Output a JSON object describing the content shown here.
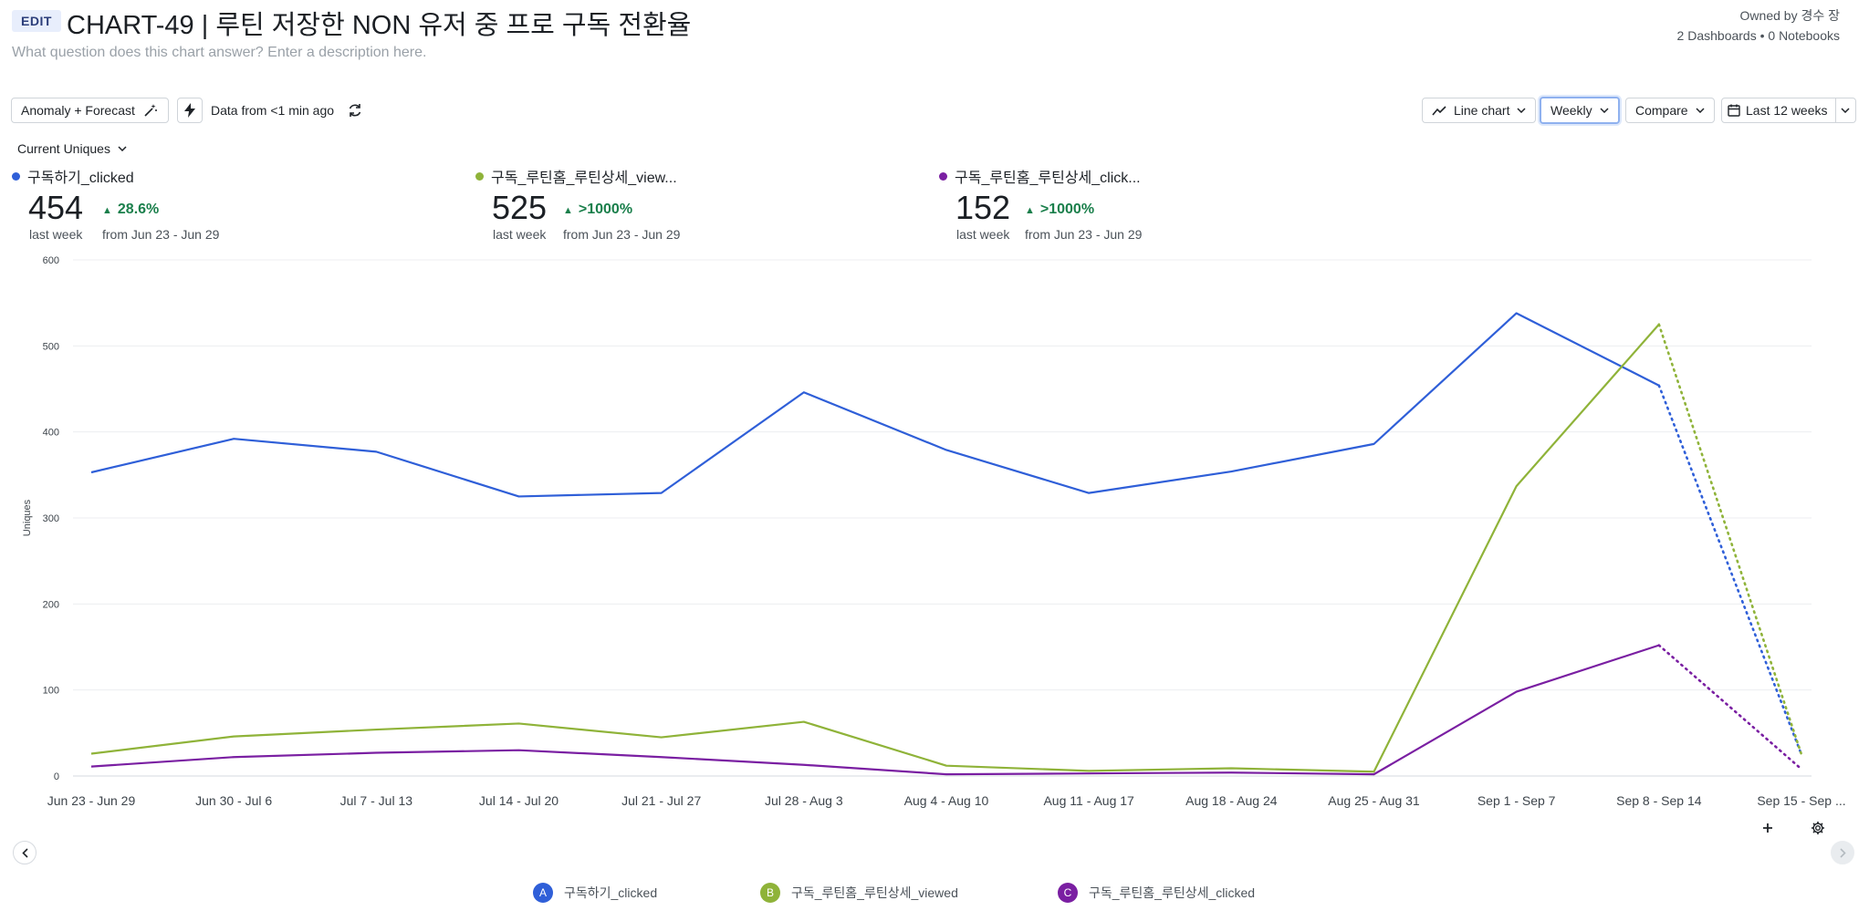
{
  "header": {
    "edit_label": "EDIT",
    "title": "CHART-49 | 루틴 저장한 NON 유저 중 프로 구독 전환율",
    "description_placeholder": "What question does this chart answer? Enter a description here.",
    "owner": "Owned by 경수 장",
    "counts": "2 Dashboards • 0 Notebooks"
  },
  "toolbar": {
    "anomaly_label": "Anomaly + Forecast",
    "data_freshness": "Data from <1 min ago",
    "chart_type_label": "Line chart",
    "interval_label": "Weekly",
    "compare_label": "Compare",
    "range_label": "Last 12 weeks"
  },
  "metric_selector": "Current Uniques",
  "summaries": [
    {
      "name": "구독하기_clicked",
      "value": "454",
      "period": "last week",
      "delta": "28.6%",
      "from": "from Jun 23 - Jun 29",
      "color": "#2f5fd8"
    },
    {
      "name": "구독_루틴홈_루틴상세_view...",
      "value": "525",
      "period": "last week",
      "delta": ">1000%",
      "from": "from Jun 23 - Jun 29",
      "color": "#8fb339"
    },
    {
      "name": "구독_루틴홈_루틴상세_click...",
      "value": "152",
      "period": "last week",
      "delta": ">1000%",
      "from": "from Jun 23 - Jun 29",
      "color": "#7a1fa2"
    }
  ],
  "legend": [
    {
      "letter": "A",
      "name": "구독하기_clicked",
      "color": "#2f5fd8"
    },
    {
      "letter": "B",
      "name": "구독_루틴홈_루틴상세_viewed",
      "color": "#8fb339"
    },
    {
      "letter": "C",
      "name": "구독_루틴홈_루틴상세_clicked",
      "color": "#7a1fa2"
    }
  ],
  "chart_data": {
    "type": "line",
    "title": "",
    "xlabel": "",
    "ylabel": "Uniques",
    "ylim": [
      0,
      600
    ],
    "yticks": [
      0,
      100,
      200,
      300,
      400,
      500,
      600
    ],
    "categories": [
      "Jun 23 - Jun 29",
      "Jun 30 - Jul 6",
      "Jul 7 - Jul 13",
      "Jul 14 - Jul 20",
      "Jul 21 - Jul 27",
      "Jul 28 - Aug 3",
      "Aug 4 - Aug 10",
      "Aug 11 - Aug 17",
      "Aug 18 - Aug 24",
      "Aug 25 - Aug 31",
      "Sep 1 - Sep 7",
      "Sep 8 - Sep 14",
      "Sep 15 - Sep ..."
    ],
    "grid": true,
    "incomplete_last_period": true,
    "series": [
      {
        "name": "구독하기_clicked",
        "color": "#2f5fd8",
        "values": [
          353,
          392,
          377,
          325,
          329,
          446,
          379,
          329,
          354,
          386,
          538,
          454,
          25
        ]
      },
      {
        "name": "구독_루틴홈_루틴상세_viewed",
        "color": "#8fb339",
        "values": [
          26,
          46,
          54,
          61,
          45,
          63,
          12,
          6,
          9,
          5,
          337,
          525,
          25
        ]
      },
      {
        "name": "구독_루틴홈_루틴상세_clicked",
        "color": "#7a1fa2",
        "values": [
          11,
          22,
          27,
          30,
          22,
          13,
          2,
          3,
          4,
          2,
          98,
          152,
          8
        ]
      }
    ]
  }
}
